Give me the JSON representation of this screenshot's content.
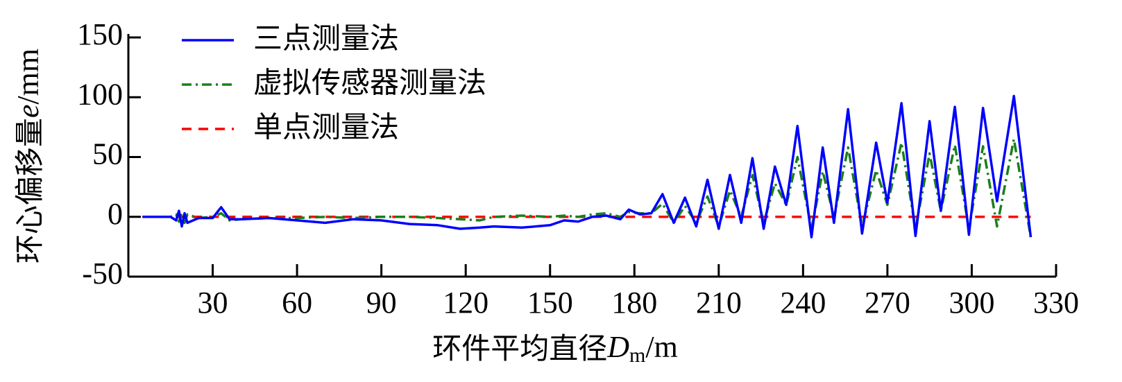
{
  "chart_data": {
    "type": "line",
    "xlabel": [
      "环件平均直径",
      "D",
      "m",
      "/m"
    ],
    "ylabel": [
      "环心偏移量",
      "e",
      "/mm"
    ],
    "x": [
      5,
      10,
      15,
      17,
      18,
      19,
      20,
      21,
      25,
      30,
      33,
      36,
      40,
      50,
      60,
      70,
      80,
      90,
      100,
      110,
      118,
      125,
      130,
      140,
      150,
      155,
      160,
      165,
      170,
      175,
      178,
      182,
      186,
      190,
      194,
      198,
      202,
      206,
      210,
      214,
      218,
      222,
      226,
      230,
      234,
      238,
      243,
      247,
      251,
      256,
      261,
      266,
      270,
      275,
      280,
      285,
      289,
      294,
      299,
      304,
      309,
      315,
      321
    ],
    "series": [
      {
        "name": "三点测量法",
        "color": "#0000ff",
        "style": "solid",
        "values": [
          0,
          0,
          0,
          -3,
          5,
          -8,
          3,
          -5,
          -1,
          -1,
          8,
          -2,
          -2,
          -1,
          -3,
          -5,
          -2,
          -3,
          -6,
          -7,
          -10,
          -9,
          -8,
          -9,
          -7,
          -3,
          -4,
          0,
          1,
          -2,
          6,
          2,
          3,
          19,
          -5,
          16,
          -8,
          31,
          -10,
          35,
          -5,
          49,
          -10,
          42,
          10,
          76,
          -17,
          58,
          -5,
          90,
          -14,
          62,
          12,
          95,
          -16,
          80,
          5,
          92,
          -15,
          91,
          13,
          101,
          -17
        ]
      },
      {
        "name": "虚拟传感器测量法",
        "color": "#1a7f1a",
        "style": "dashdot",
        "values": [
          0,
          0,
          0,
          2,
          -4,
          3,
          -5,
          2,
          -1,
          0,
          3,
          -3,
          -2,
          -1,
          -1,
          0,
          -1,
          0,
          0,
          -1,
          -2,
          -3,
          0,
          1,
          0,
          1,
          0,
          2,
          3,
          0,
          4,
          3,
          3,
          11,
          -5,
          9,
          -5,
          17,
          -8,
          22,
          0,
          35,
          -5,
          28,
          10,
          50,
          -10,
          38,
          0,
          58,
          -8,
          39,
          10,
          62,
          -10,
          53,
          5,
          60,
          -10,
          59,
          -8,
          65,
          -17
        ]
      },
      {
        "name": "单点测量法",
        "color": "#ff0000",
        "style": "dashed",
        "values": [
          0,
          0,
          0,
          0,
          0,
          0,
          0,
          0,
          0,
          0,
          0,
          0,
          0,
          0,
          0,
          0,
          0,
          0,
          0,
          0,
          0,
          0,
          0,
          0,
          0,
          0,
          0,
          0,
          0,
          0,
          0,
          0,
          0,
          0,
          0,
          0,
          0,
          0,
          0,
          0,
          0,
          0,
          0,
          0,
          0,
          0,
          0,
          0,
          0,
          0,
          0,
          0,
          0,
          0,
          0,
          0,
          0,
          0,
          0,
          0,
          0,
          0,
          0
        ]
      }
    ],
    "xlim": [
      0,
      330
    ],
    "xticks": [
      30,
      60,
      90,
      120,
      150,
      180,
      210,
      240,
      270,
      300,
      330
    ],
    "ylim": [
      -50,
      150
    ],
    "yticks": [
      -50,
      0,
      50,
      100,
      150
    ],
    "grid": false,
    "legend": "upper left"
  }
}
